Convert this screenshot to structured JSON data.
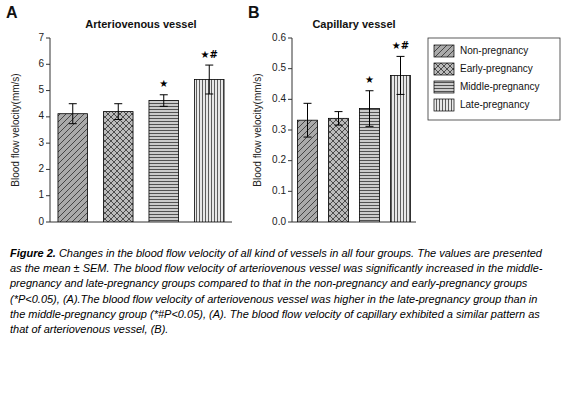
{
  "chart_data": [
    {
      "type": "bar",
      "label": "A",
      "title": "Arteriovenous vessel",
      "ylabel": "Blood flow velocity(mm/s)",
      "categories": [
        "Non-pregnancy",
        "Early-pregnancy",
        "Middle-pregnancy",
        "Late-pregnancy"
      ],
      "values": [
        4.12,
        4.2,
        4.62,
        5.42
      ],
      "errors": [
        0.38,
        0.3,
        0.22,
        0.55
      ],
      "annotations": [
        null,
        null,
        "★",
        "★#"
      ],
      "colors": [
        "#aaaaaa",
        "#bbbbbb",
        "#cccccc",
        "#e8e8e8"
      ],
      "ylim": [
        0,
        7
      ],
      "yticks": [
        0,
        1,
        2,
        3,
        4,
        5,
        6,
        7
      ],
      "grid": false,
      "tick_labels": "y"
    },
    {
      "type": "bar",
      "label": "B",
      "title": "Capillary vessel",
      "ylabel": "Blood flow velocity(mm/s)",
      "categories": [
        "Non-pregnancy",
        "Early-pregnancy",
        "Middle-pregnancy",
        "Late-pregnancy"
      ],
      "values": [
        0.332,
        0.338,
        0.37,
        0.478
      ],
      "errors": [
        0.055,
        0.022,
        0.058,
        0.062
      ],
      "annotations": [
        null,
        null,
        "★",
        "★#"
      ],
      "colors": [
        "#aaaaaa",
        "#bbbbbb",
        "#cccccc",
        "#e8e8e8"
      ],
      "ylim": [
        0.0,
        0.6
      ],
      "yticks": [
        {
          "value": 0.0,
          "label": "0.0"
        },
        0.1,
        0.2,
        0.3,
        0.4,
        0.5,
        0.6
      ],
      "grid": false,
      "tick_labels": "y",
      "legend": "right"
    }
  ],
  "caption": {
    "title": "Figure 2.",
    "text": "Changes in the blood flow velocity of all kind of vessels in all four groups. The values are presented as the mean ± SEM. The blood flow velocity of arteriovenous vessel was significantly increased in the middle-pregnancy and late-pregnancy groups compared to that in the non-pregnancy and early-pregnancy groups (*P<0.05), (A).The blood flow velocity of arteriovenous vessel was higher in the late-pregnancy group than in the middle-pregnancy group (*#P<0.05), (A). The blood flow velocity of capillary exhibited a similar pattern as that of arteriovenous vessel, (B)."
  }
}
